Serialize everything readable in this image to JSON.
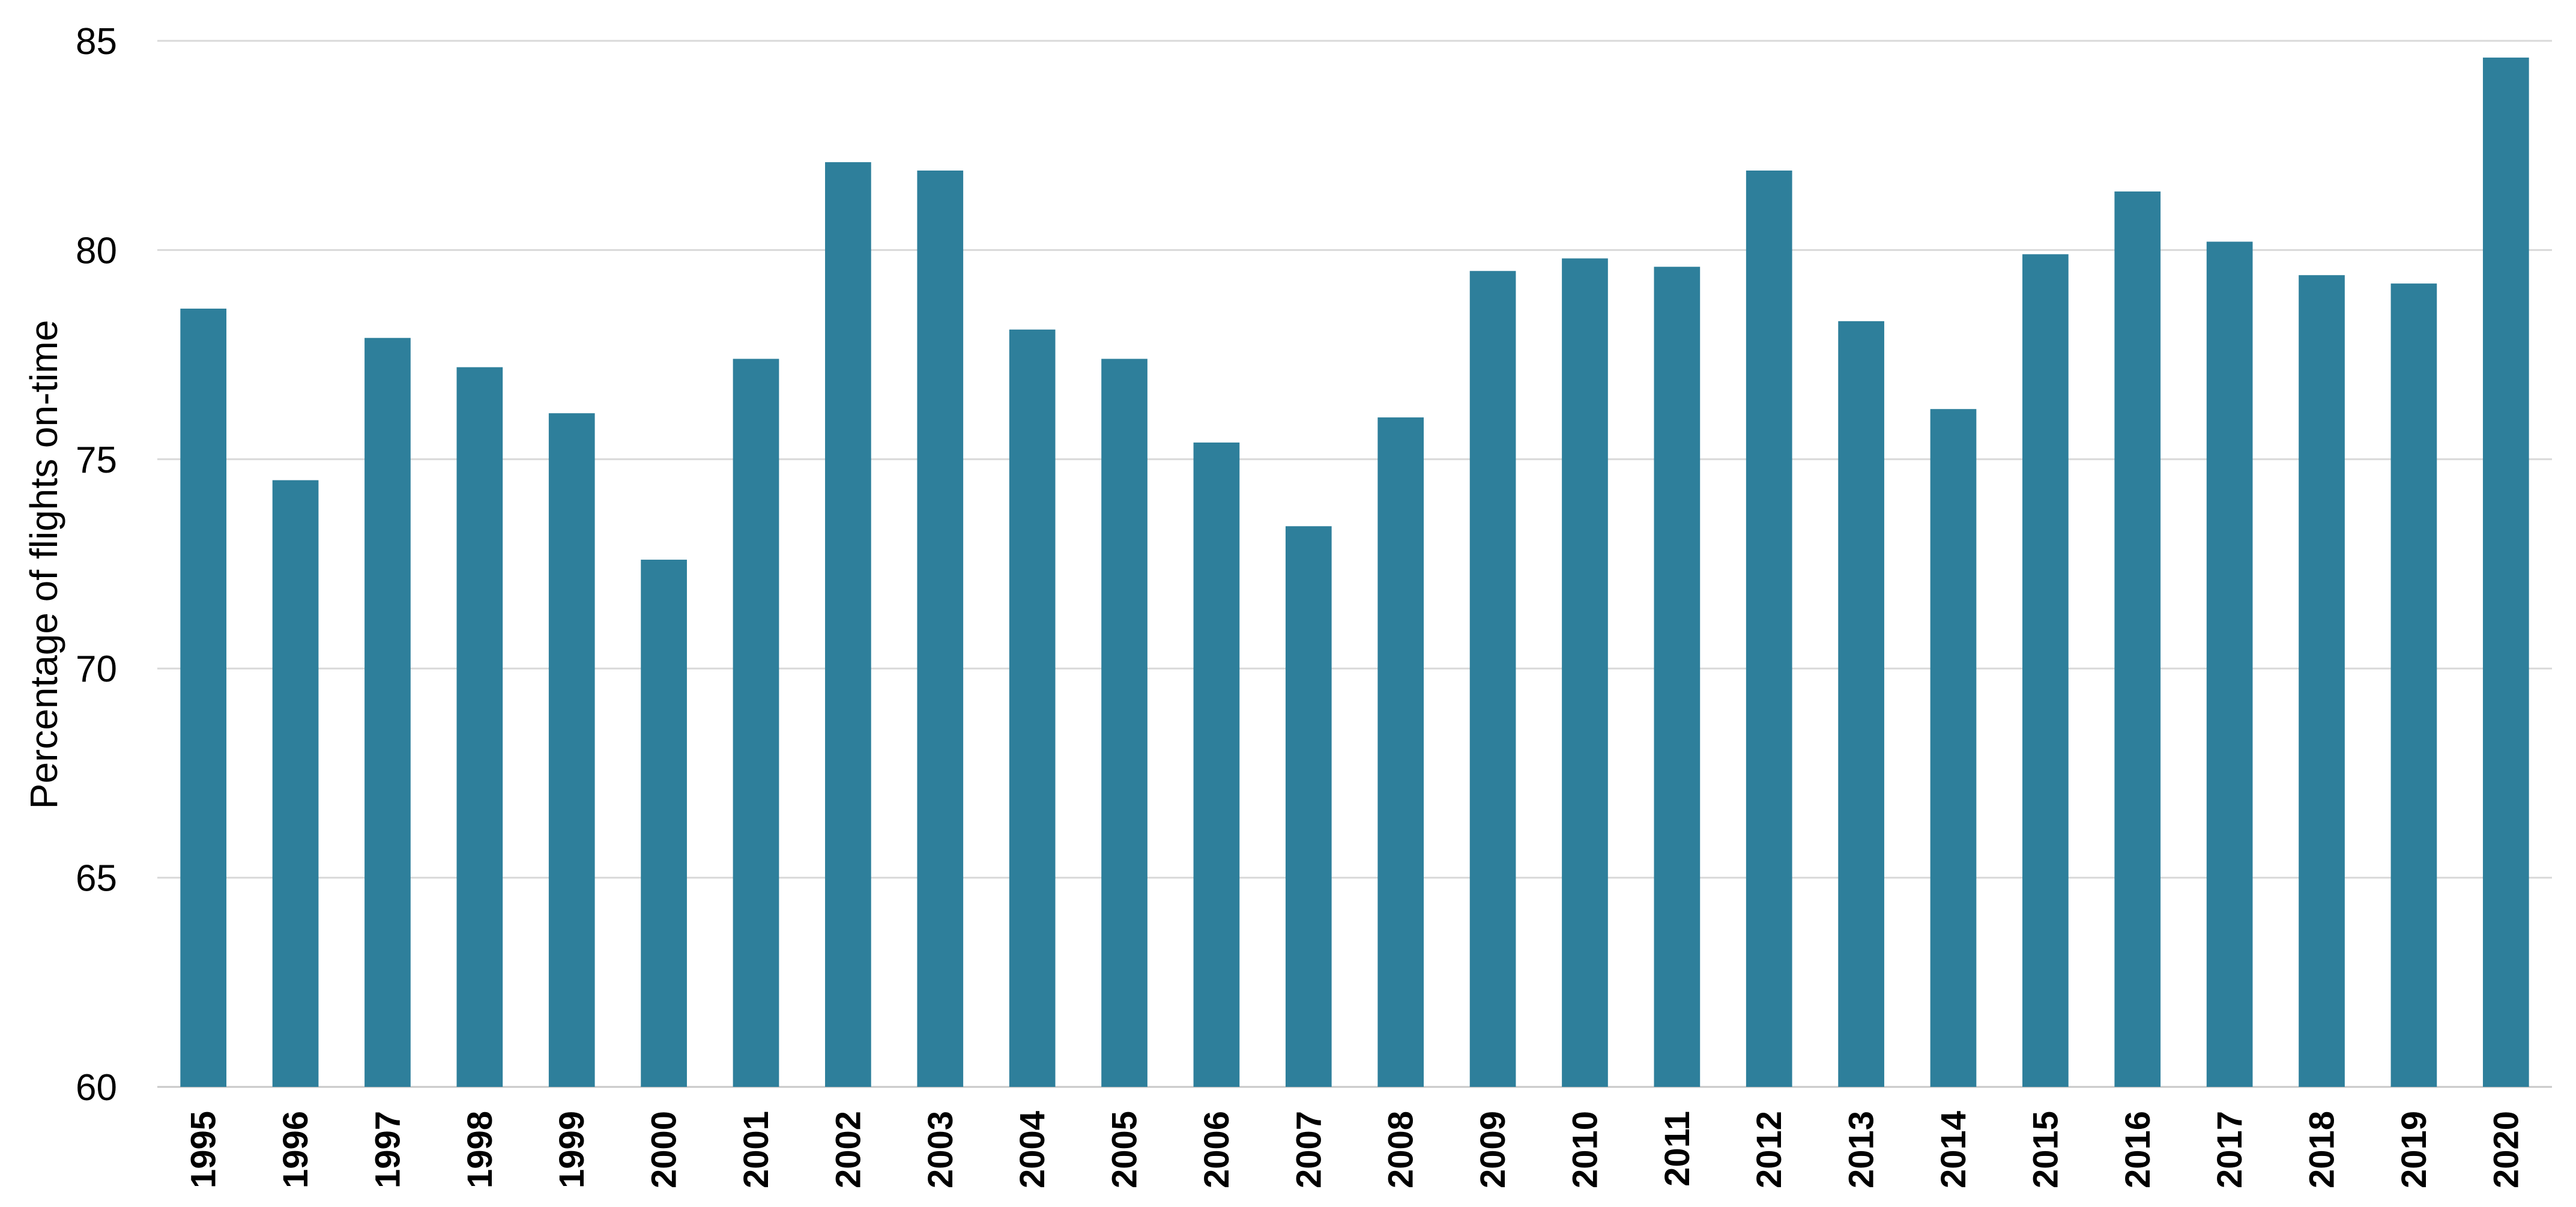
{
  "chart_data": {
    "type": "bar",
    "title": "",
    "xlabel": "",
    "ylabel": "Percentage of flights on-time",
    "ylim": [
      60,
      85
    ],
    "yticks": [
      60,
      65,
      70,
      75,
      80,
      85
    ],
    "grid": true,
    "categories": [
      "1995",
      "1996",
      "1997",
      "1998",
      "1999",
      "2000",
      "2001",
      "2002",
      "2003",
      "2004",
      "2005",
      "2006",
      "2007",
      "2008",
      "2009",
      "2010",
      "2011",
      "2012",
      "2013",
      "2014",
      "2015",
      "2016",
      "2017",
      "2018",
      "2019",
      "2020"
    ],
    "values": [
      78.6,
      74.5,
      77.9,
      77.2,
      76.1,
      72.6,
      77.4,
      82.1,
      81.9,
      78.1,
      77.4,
      75.4,
      73.4,
      76.0,
      79.5,
      79.8,
      79.6,
      81.9,
      78.3,
      76.2,
      79.9,
      81.4,
      80.2,
      79.4,
      79.2,
      84.6
    ],
    "colors": {
      "bar": "#2e7f9b",
      "grid": "#d9d9d9"
    }
  }
}
